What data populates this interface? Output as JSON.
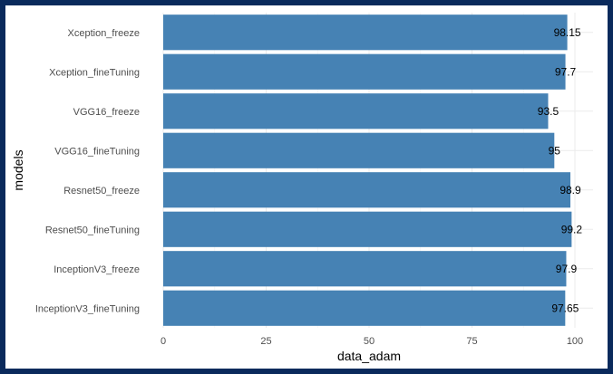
{
  "chart_data": {
    "type": "bar",
    "orientation": "horizontal",
    "categories": [
      "Xception_freeze",
      "Xception_fineTuning",
      "VGG16_freeze",
      "VGG16_fineTuning",
      "Resnet50_freeze",
      "Resnet50_fineTuning",
      "InceptionV3_freeze",
      "InceptionV3_fineTuning"
    ],
    "values": [
      98.15,
      97.7,
      93.5,
      95,
      98.9,
      99.2,
      97.9,
      97.65
    ],
    "data_labels": [
      "98.15",
      "97.7",
      "93.5",
      "95",
      "98.9",
      "99.2",
      "97.9",
      "97.65"
    ],
    "xlabel": "data_adam",
    "ylabel": "models",
    "xlim": [
      0,
      100
    ],
    "x_ticks": [
      0,
      25,
      50,
      75,
      100
    ],
    "grid": true,
    "bar_color": "#4682b4",
    "background": "#0a2a5c"
  }
}
